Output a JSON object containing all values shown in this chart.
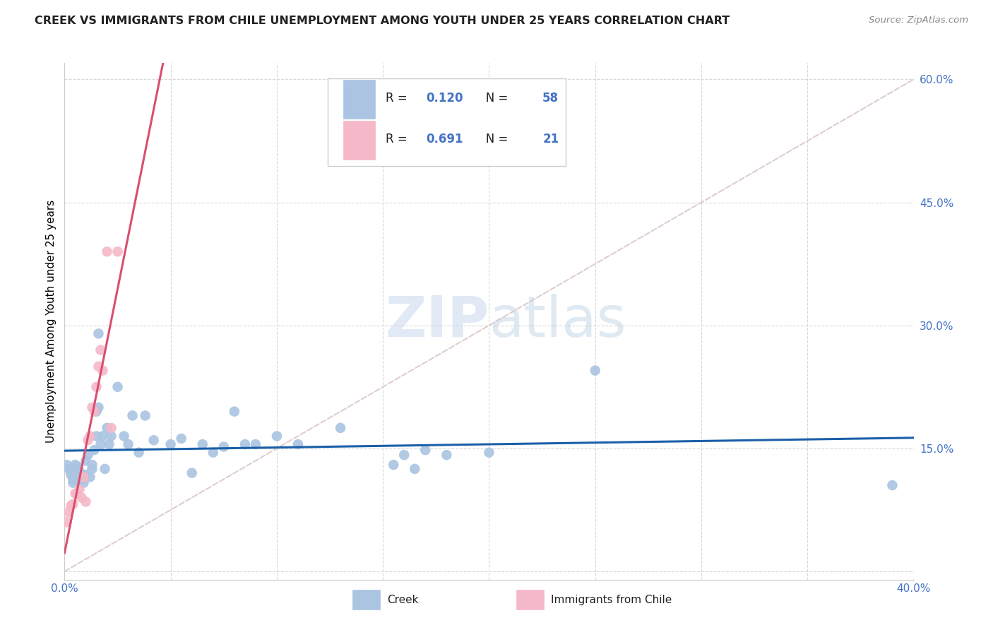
{
  "title": "CREEK VS IMMIGRANTS FROM CHILE UNEMPLOYMENT AMONG YOUTH UNDER 25 YEARS CORRELATION CHART",
  "source": "Source: ZipAtlas.com",
  "ylabel": "Unemployment Among Youth under 25 years",
  "xlim": [
    0.0,
    0.4
  ],
  "ylim": [
    -0.02,
    0.62
  ],
  "xtick_vals": [
    0.0,
    0.05,
    0.1,
    0.15,
    0.2,
    0.25,
    0.3,
    0.35,
    0.4
  ],
  "ytick_vals": [
    0.0,
    0.15,
    0.3,
    0.45,
    0.6
  ],
  "creek_R": 0.12,
  "creek_N": 58,
  "chile_R": 0.691,
  "chile_N": 21,
  "creek_color": "#aac4e2",
  "chile_color": "#f5b8c8",
  "creek_line_color": "#1a5fa8",
  "chile_line_color": "#d94f6e",
  "diagonal_color": "#ddc8c8",
  "watermark_zip": "ZIP",
  "watermark_atlas": "atlas",
  "creek_x": [
    0.001,
    0.002,
    0.003,
    0.003,
    0.004,
    0.004,
    0.005,
    0.005,
    0.006,
    0.006,
    0.007,
    0.007,
    0.008,
    0.009,
    0.01,
    0.01,
    0.011,
    0.012,
    0.013,
    0.013,
    0.014,
    0.015,
    0.015,
    0.016,
    0.016,
    0.017,
    0.018,
    0.019,
    0.02,
    0.021,
    0.022,
    0.025,
    0.028,
    0.03,
    0.032,
    0.035,
    0.038,
    0.042,
    0.05,
    0.055,
    0.06,
    0.065,
    0.07,
    0.075,
    0.08,
    0.085,
    0.09,
    0.1,
    0.11,
    0.13,
    0.155,
    0.16,
    0.165,
    0.17,
    0.18,
    0.2,
    0.25,
    0.39
  ],
  "creek_y": [
    0.13,
    0.125,
    0.118,
    0.122,
    0.112,
    0.108,
    0.13,
    0.118,
    0.11,
    0.128,
    0.115,
    0.122,
    0.112,
    0.108,
    0.135,
    0.118,
    0.142,
    0.115,
    0.13,
    0.125,
    0.148,
    0.165,
    0.195,
    0.2,
    0.29,
    0.155,
    0.165,
    0.125,
    0.175,
    0.155,
    0.165,
    0.225,
    0.165,
    0.155,
    0.19,
    0.145,
    0.19,
    0.16,
    0.155,
    0.162,
    0.12,
    0.155,
    0.145,
    0.152,
    0.195,
    0.155,
    0.155,
    0.165,
    0.155,
    0.175,
    0.13,
    0.142,
    0.125,
    0.148,
    0.142,
    0.145,
    0.245,
    0.105
  ],
  "chile_x": [
    0.001,
    0.002,
    0.003,
    0.004,
    0.005,
    0.006,
    0.007,
    0.008,
    0.009,
    0.01,
    0.011,
    0.012,
    0.013,
    0.014,
    0.015,
    0.016,
    0.017,
    0.018,
    0.02,
    0.022,
    0.025
  ],
  "chile_y": [
    0.06,
    0.072,
    0.08,
    0.082,
    0.095,
    0.095,
    0.1,
    0.09,
    0.115,
    0.085,
    0.16,
    0.165,
    0.2,
    0.195,
    0.225,
    0.25,
    0.27,
    0.245,
    0.39,
    0.175,
    0.39
  ]
}
